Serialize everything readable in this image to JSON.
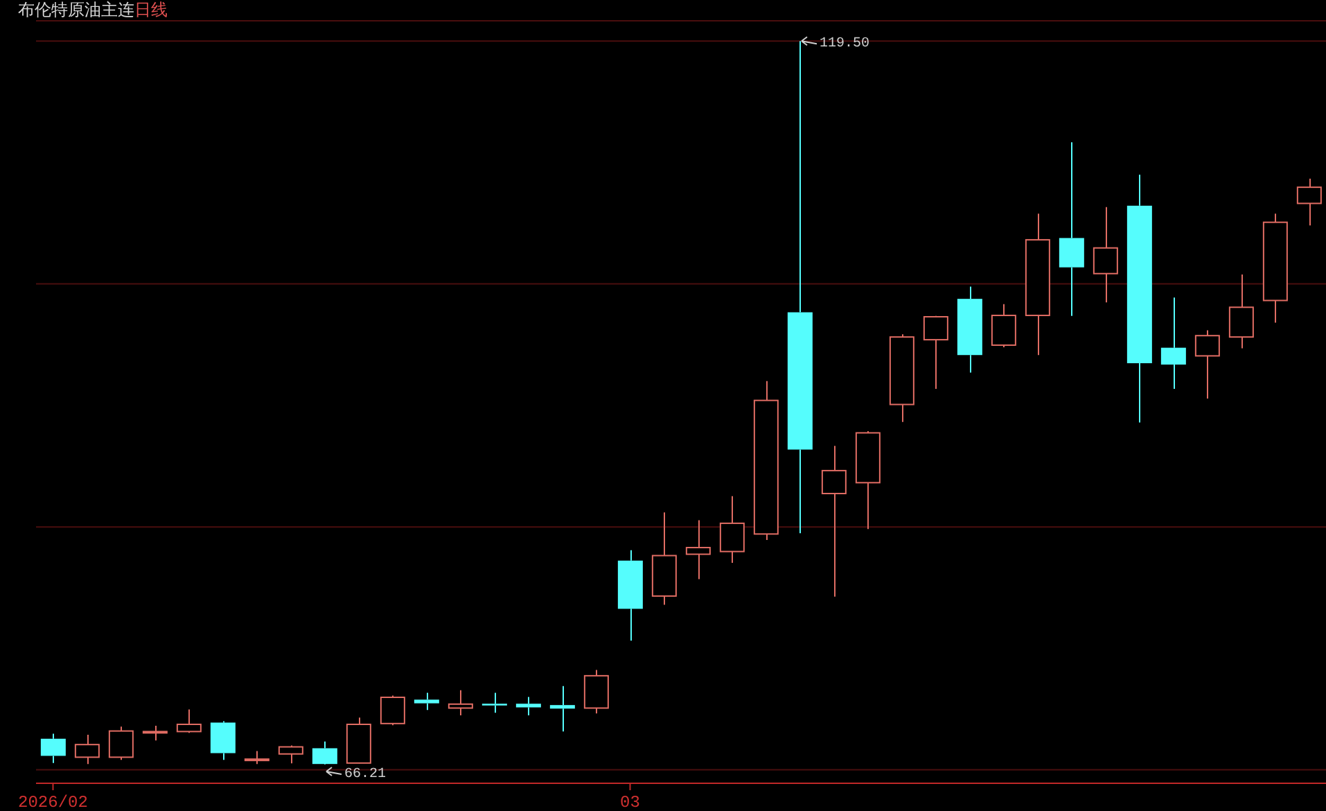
{
  "chart_data": {
    "type": "candlestick",
    "title": "布伦特原油主连",
    "subtitle": "日线",
    "categories": [
      "2026/02",
      null,
      null,
      null,
      null,
      null,
      null,
      null,
      null,
      null,
      null,
      null,
      null,
      null,
      null,
      null,
      null,
      "03",
      null,
      null,
      null,
      null,
      null,
      null,
      null,
      null,
      null,
      null,
      null,
      null,
      null,
      null,
      null,
      null,
      null,
      null,
      null,
      null
    ],
    "ohlc": [
      [
        68.11,
        68.48,
        66.32,
        66.85
      ],
      [
        66.75,
        68.41,
        66.25,
        67.68
      ],
      [
        66.75,
        69.0,
        66.55,
        68.68
      ],
      [
        68.58,
        69.07,
        67.98,
        68.64
      ],
      [
        68.64,
        70.27,
        68.54,
        69.17
      ],
      [
        69.3,
        69.4,
        66.55,
        67.05
      ],
      [
        66.57,
        67.21,
        66.25,
        66.61
      ],
      [
        66.99,
        67.61,
        66.3,
        67.51
      ],
      [
        67.41,
        67.91,
        66.21,
        66.25
      ],
      [
        66.32,
        69.67,
        66.3,
        69.17
      ],
      [
        69.23,
        71.29,
        69.1,
        71.16
      ],
      [
        70.99,
        71.49,
        70.23,
        70.72
      ],
      [
        70.37,
        71.69,
        69.83,
        70.66
      ],
      [
        70.69,
        71.49,
        70.03,
        70.56
      ],
      [
        70.69,
        71.19,
        69.83,
        70.42
      ],
      [
        70.59,
        71.99,
        68.64,
        70.33
      ],
      [
        70.37,
        73.18,
        69.97,
        72.75
      ],
      [
        81.23,
        82.0,
        75.34,
        77.68
      ],
      [
        78.62,
        84.78,
        77.98,
        81.6
      ],
      [
        81.7,
        84.21,
        79.87,
        82.19
      ],
      [
        81.9,
        85.98,
        81.06,
        83.98
      ],
      [
        83.19,
        94.45,
        82.75,
        93.03
      ],
      [
        99.52,
        119.5,
        83.25,
        89.41
      ],
      [
        86.17,
        89.68,
        78.58,
        87.86
      ],
      [
        86.97,
        90.77,
        83.55,
        90.64
      ],
      [
        92.73,
        97.9,
        91.44,
        97.7
      ],
      [
        97.5,
        99.25,
        93.88,
        99.19
      ],
      [
        100.51,
        101.41,
        95.08,
        96.37
      ],
      [
        97.1,
        100.12,
        96.94,
        99.29
      ],
      [
        99.29,
        106.78,
        96.37,
        104.86
      ],
      [
        104.99,
        112.04,
        99.25,
        102.83
      ],
      [
        102.37,
        107.27,
        100.25,
        104.26
      ],
      [
        107.37,
        109.66,
        91.4,
        95.77
      ],
      [
        96.91,
        100.61,
        93.88,
        95.67
      ],
      [
        96.31,
        98.2,
        93.16,
        97.8
      ],
      [
        97.7,
        102.3,
        96.87,
        99.89
      ],
      [
        100.39,
        106.78,
        98.75,
        106.15
      ],
      [
        107.54,
        109.36,
        105.91,
        108.73
      ]
    ],
    "colors": [
      "#55fdfd",
      "#e06c63",
      "#e06c63",
      "#e06c63",
      "#e06c63",
      "#55fdfd",
      "#e06c63",
      "#e06c63",
      "#55fdfd",
      "#e06c63",
      "#e06c63",
      "#55fdfd",
      "#e06c63",
      "#55fdfd",
      "#55fdfd",
      "#55fdfd",
      "#e06c63",
      "#55fdfd",
      "#e06c63",
      "#e06c63",
      "#e06c63",
      "#e06c63",
      "#55fdfd",
      "#e06c63",
      "#e06c63",
      "#e06c63",
      "#e06c63",
      "#55fdfd",
      "#e06c63",
      "#e06c63",
      "#55fdfd",
      "#e06c63",
      "#55fdfd",
      "#55fdfd",
      "#e06c63",
      "#e06c63",
      "#e06c63",
      "#e06c63"
    ],
    "ylim": [
      64.83,
      120.99
    ],
    "yticks": [
      {
        "value": 65.82,
        "label": null
      },
      {
        "value": 83.71,
        "label": null
      },
      {
        "value": 101.61,
        "label": null
      },
      {
        "value": 119.5,
        "label": null
      }
    ],
    "grid": "y",
    "tick_labels": "x",
    "annotations": [
      "119.50",
      {
        "text": "66.21",
        "y": 66.21
      }
    ]
  }
}
